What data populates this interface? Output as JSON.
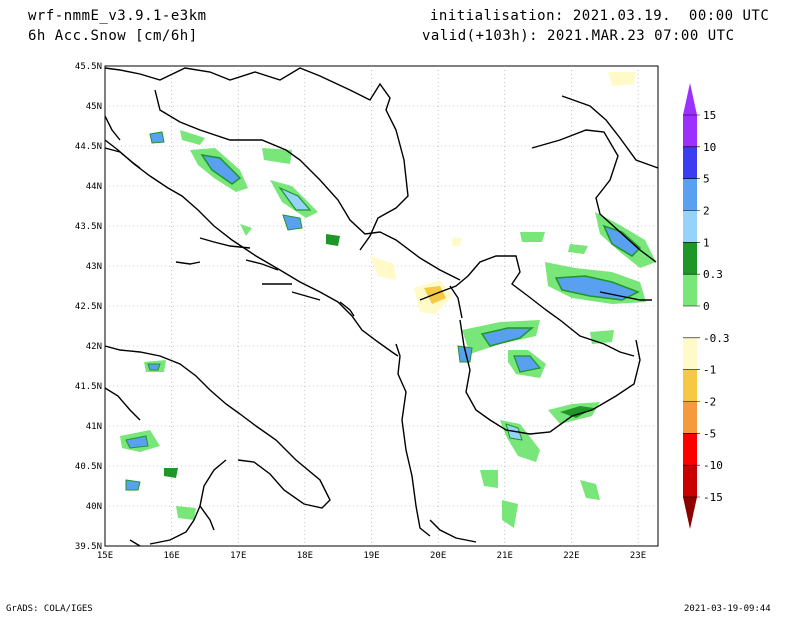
{
  "header": {
    "model": "wrf-nmmE_v3.9.1-e3km",
    "field": "6h Acc.Snow [cm/6h]",
    "init": "initialisation: 2021.03.19.  00:00 UTC",
    "valid": "valid(+103h): 2021.MAR.23 07:00 UTC"
  },
  "map": {
    "lon_labels": [
      "15E",
      "16E",
      "17E",
      "18E",
      "19E",
      "20E",
      "21E",
      "22E",
      "23E"
    ],
    "lat_labels": [
      "45.5N",
      "45N",
      "44.5N",
      "44N",
      "43.5N",
      "43N",
      "42.5N",
      "42N",
      "41.5N",
      "41N",
      "40.5N",
      "40N",
      "39.5N"
    ],
    "lon_range": [
      15,
      23.3
    ],
    "lat_range": [
      39.5,
      45.5
    ],
    "grid": "dotted"
  },
  "colorbar": {
    "labels": [
      "15",
      "10",
      "5",
      "2",
      "1",
      "0.3",
      "0",
      "-0.3",
      "-1",
      "-2",
      "-5",
      "-10",
      "-15"
    ],
    "colors": [
      "#9b30ff",
      "#3c3cf0",
      "#5aa0f0",
      "#96d2fa",
      "#1e9628",
      "#78e678",
      "#ffffff",
      "#fffac8",
      "#f5c846",
      "#f59b3c",
      "#ff0000",
      "#c80000",
      "#8c0000"
    ],
    "top_arrow_color": "#9b30ff",
    "bottom_arrow_color": "#8c0000"
  },
  "footer": {
    "credit": "GrADS: COLA/IGES",
    "stamp": "2021-03-19-09:44"
  }
}
